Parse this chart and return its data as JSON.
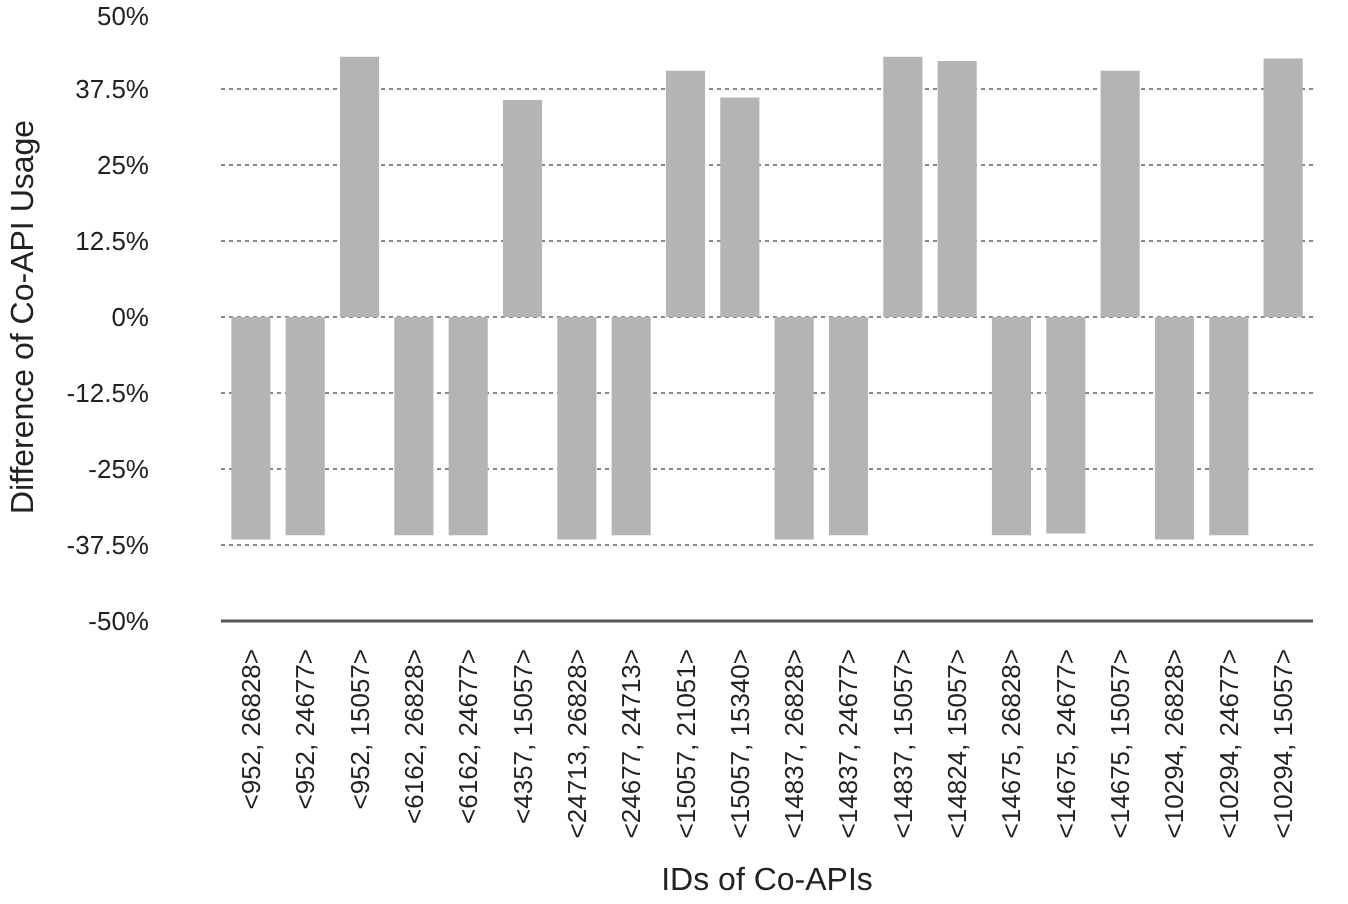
{
  "chart_data": {
    "type": "bar",
    "xlabel": "IDs of Co-APIs",
    "ylabel": "Difference of Co-API Usage",
    "categories": [
      "<952, 26828>",
      "<952, 24677>",
      "<952, 15057>",
      "<6162, 26828>",
      "<6162, 24677>",
      "<4357, 15057>",
      "<24713, 26828>",
      "<24677, 24713>",
      "<15057, 21051>",
      "<15057, 15340>",
      "<14837, 26828>",
      "<14837, 24677>",
      "<14837, 15057>",
      "<14824, 15057>",
      "<14675, 26828>",
      "<14675, 24677>",
      "<14675, 15057>",
      "<10294, 26828>",
      "<10294, 24677>",
      "<10294, 15057>"
    ],
    "values": [
      -36.6,
      -35.9,
      42.8,
      -35.9,
      -35.9,
      35.7,
      -36.6,
      -35.9,
      40.5,
      36.1,
      -36.6,
      -35.9,
      42.8,
      42.1,
      -35.9,
      -35.6,
      40.5,
      -36.6,
      -35.9,
      42.5
    ],
    "color": "#b3b4b6",
    "ylim": [
      -50,
      50
    ],
    "yticks": [
      {
        "value": 50,
        "label": "50%"
      },
      {
        "value": 37.5,
        "label": "37.5%"
      },
      {
        "value": 25,
        "label": "25%"
      },
      {
        "value": 12.5,
        "label": "12.5%"
      },
      {
        "value": 0,
        "label": "0%"
      },
      {
        "value": -12.5,
        "label": "-12.5%"
      },
      {
        "value": -25,
        "label": "-25%"
      },
      {
        "value": -37.5,
        "label": "-37.5%"
      },
      {
        "value": -50,
        "label": "-50%"
      }
    ],
    "grid": "y"
  }
}
